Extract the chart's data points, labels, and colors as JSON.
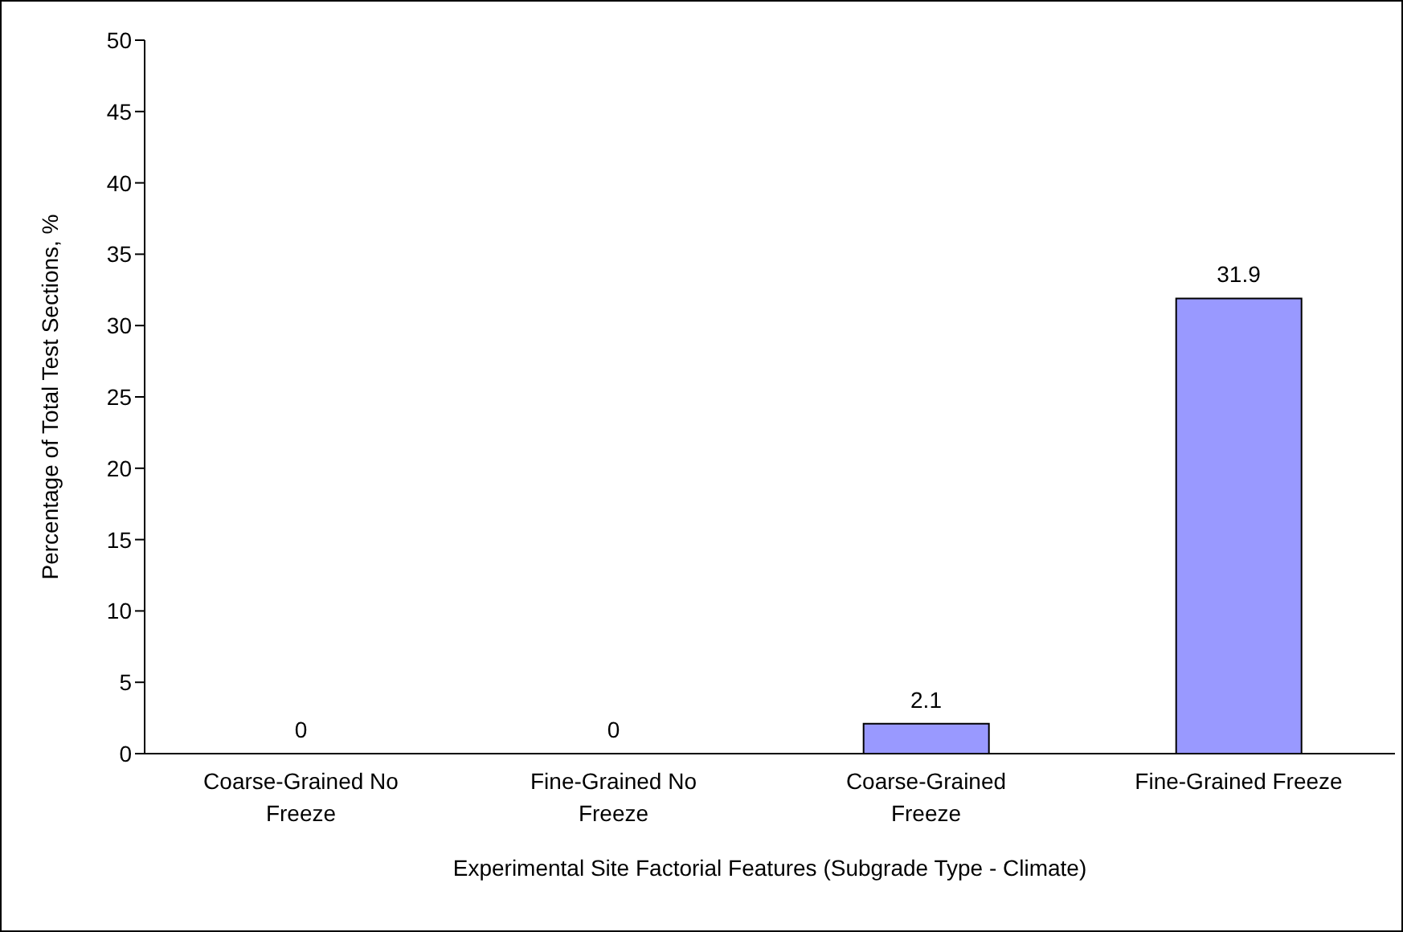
{
  "chart_data": {
    "type": "bar",
    "categories": [
      "Coarse-Grained No Freeze",
      "Fine-Grained No Freeze",
      "Coarse-Grained Freeze",
      "Fine-Grained Freeze"
    ],
    "values": [
      0,
      0,
      2.1,
      31.9
    ],
    "color": "#9999ff",
    "xlabel": "Experimental Site Factorial Features (Subgrade Type - Climate)",
    "ylabel": "Percentage of Total Test Sections, %",
    "ylim": [
      0,
      50
    ],
    "yticks": [
      0,
      5,
      10,
      15,
      20,
      25,
      30,
      35,
      40,
      45,
      50
    ],
    "data_labels": true,
    "grid": false,
    "legend": false
  }
}
